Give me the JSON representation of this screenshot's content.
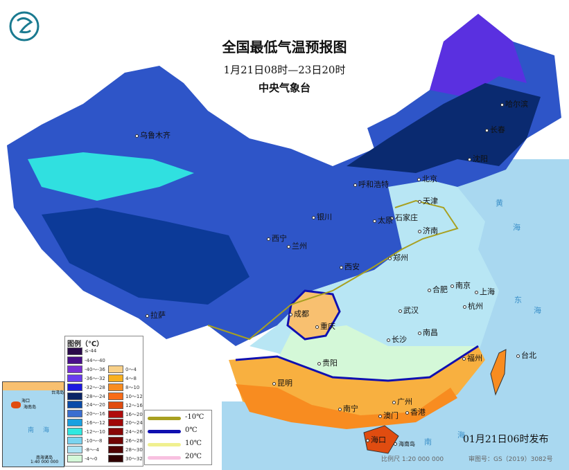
{
  "title": "全国最低气温预报图",
  "subtitle": "1月21日08时—23日20时",
  "issuer": "中央气象台",
  "logo": "气象局徽标",
  "publish_time": "01月21日06时发布",
  "scale": "比例尺 1:20 000 000",
  "map_review_no": "审图号：GS（2019）3082号",
  "legend": {
    "title": "图例（℃）",
    "cold": [
      {
        "label": "≤-44",
        "color": "#2a0a4a"
      },
      {
        "label": "-44～-40",
        "color": "#4a0f8a"
      },
      {
        "label": "-40～-36",
        "color": "#7a2fd6"
      },
      {
        "label": "-36～-32",
        "color": "#6a3cf0"
      },
      {
        "label": "-32～-28",
        "color": "#1c18e0"
      },
      {
        "label": "-28～-24",
        "color": "#0a2466"
      },
      {
        "label": "-24～-20",
        "color": "#0a4aa8"
      },
      {
        "label": "-20～-16",
        "color": "#3a6ed0"
      },
      {
        "label": "-16～-12",
        "color": "#1aa0e0"
      },
      {
        "label": "-12～-10",
        "color": "#30e8e0"
      },
      {
        "label": "-10～-8",
        "color": "#7ad4f0"
      },
      {
        "label": "-8～-4",
        "color": "#aee4f4"
      },
      {
        "label": "-4～0",
        "color": "#d4f8d8"
      }
    ],
    "warm": [
      {
        "label": "0～4",
        "color": "#f8d088"
      },
      {
        "label": "4～8",
        "color": "#f8b020"
      },
      {
        "label": "8～10",
        "color": "#f88c20"
      },
      {
        "label": "10～12",
        "color": "#f86c18"
      },
      {
        "label": "12～16",
        "color": "#e04c10"
      },
      {
        "label": "16～20",
        "color": "#b00c0c"
      },
      {
        "label": "20～24",
        "color": "#a00808"
      },
      {
        "label": "24～26",
        "color": "#880606"
      },
      {
        "label": "26～28",
        "color": "#700404"
      },
      {
        "label": "28～30",
        "color": "#500202"
      },
      {
        "label": "30～32",
        "color": "#300000"
      }
    ],
    "isotherms": [
      {
        "label": "-10℃",
        "color": "#a8a020"
      },
      {
        "label": "0℃",
        "color": "#1010b0"
      },
      {
        "label": "10℃",
        "color": "#f0f090"
      },
      {
        "label": "20℃",
        "color": "#f8c0e0"
      }
    ]
  },
  "cities": [
    "哈尔滨",
    "长春",
    "沈阳",
    "北京",
    "天津",
    "呼和浩特",
    "石家庄",
    "太原",
    "济南",
    "银川",
    "西宁",
    "兰州",
    "郑州",
    "西安",
    "合肥",
    "南京",
    "上海",
    "杭州",
    "武汉",
    "成都",
    "重庆",
    "长沙",
    "南昌",
    "拉萨",
    "乌鲁木齐",
    "台北",
    "福州",
    "贵阳",
    "昆明",
    "南宁",
    "广州",
    "澳门",
    "香港",
    "海口",
    "海南岛"
  ],
  "seas": [
    "黄",
    "海",
    "东",
    "海",
    "南",
    "海"
  ],
  "inset": {
    "labels": [
      "海口",
      "海南岛",
      "台湾岛",
      "南",
      "海",
      "南海诸岛"
    ],
    "scale": "1:40 000 000"
  }
}
